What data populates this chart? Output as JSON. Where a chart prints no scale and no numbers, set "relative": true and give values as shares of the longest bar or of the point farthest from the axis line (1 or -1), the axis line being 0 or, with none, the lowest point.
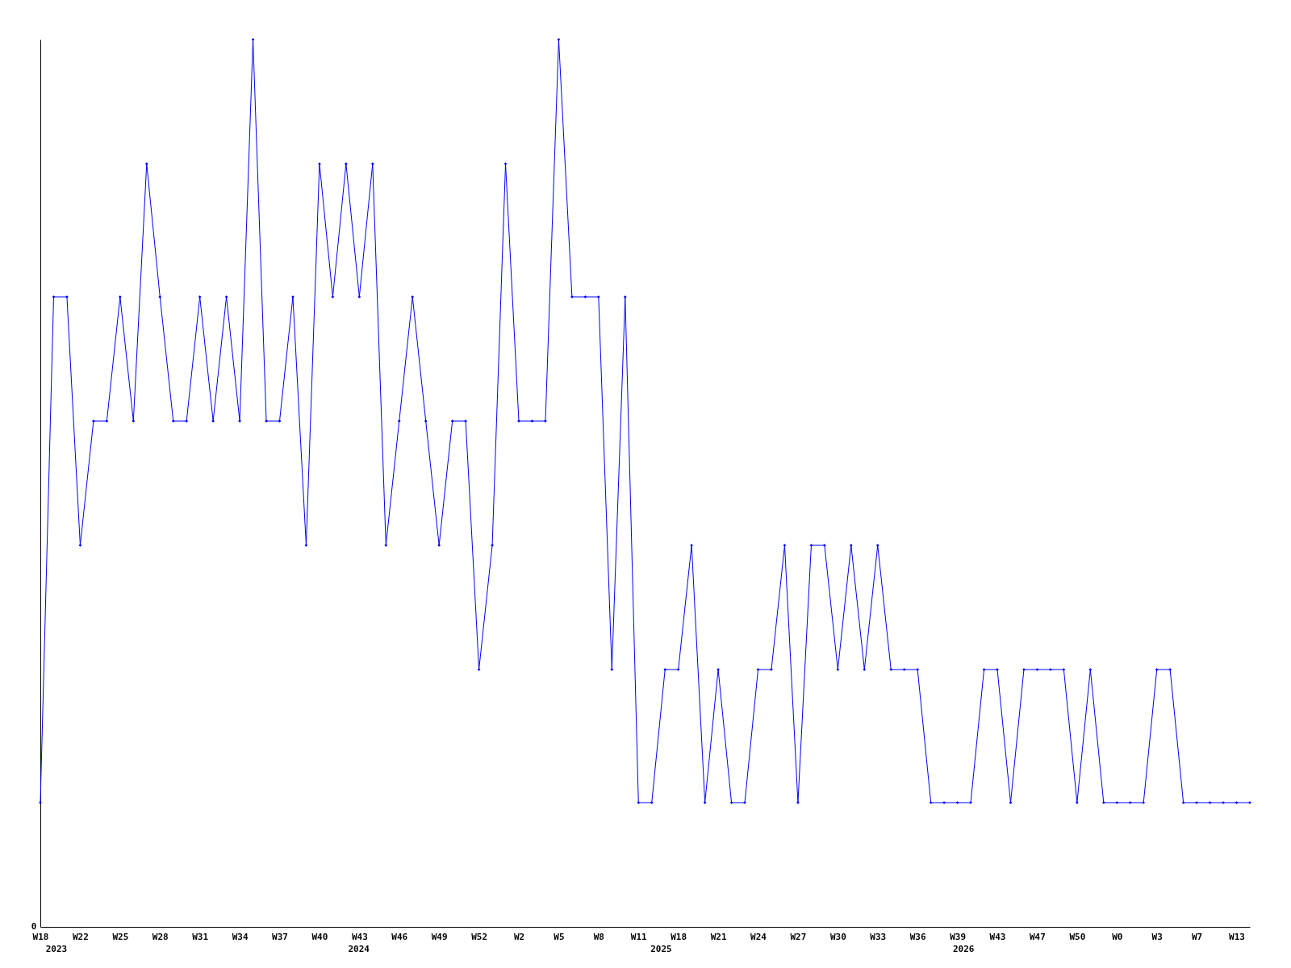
{
  "chart_data": {
    "type": "line",
    "relative": true,
    "marker": "diamond",
    "line_style": "solid",
    "grid": false,
    "categories": [
      "W18",
      null,
      null,
      "W22",
      null,
      null,
      "W25",
      null,
      null,
      "W28",
      null,
      null,
      "W31",
      null,
      null,
      "W34",
      null,
      null,
      "W37",
      null,
      null,
      "W40",
      null,
      null,
      "W43",
      null,
      null,
      "W46",
      null,
      null,
      "W49",
      null,
      null,
      "W52",
      null,
      null,
      "W2",
      null,
      null,
      "W5",
      null,
      null,
      "W8",
      null,
      null,
      "W11",
      null,
      null,
      "W18",
      null,
      null,
      "W21",
      null,
      null,
      "W24",
      null,
      null,
      "W27",
      null,
      null,
      "W30",
      null,
      null,
      "W33",
      null,
      null,
      "W36",
      null,
      null,
      "W39",
      null,
      null,
      "W43",
      null,
      null,
      "W47",
      null,
      null,
      "W50",
      null,
      null,
      "W0",
      null,
      null,
      "W3",
      null,
      null,
      "W7",
      null,
      null,
      "W13",
      null
    ],
    "series": [
      {
        "color": "#0000ff",
        "values": [
          0.14,
          0.71,
          0.71,
          0.43,
          0.57,
          0.57,
          0.71,
          0.57,
          0.86,
          0.71,
          0.57,
          0.57,
          0.71,
          0.57,
          0.71,
          0.57,
          1,
          0.57,
          0.57,
          0.71,
          0.43,
          0.86,
          0.71,
          0.86,
          0.71,
          0.86,
          0.43,
          0.57,
          0.71,
          0.57,
          0.43,
          0.57,
          0.57,
          0.29,
          0.43,
          0.86,
          0.57,
          0.57,
          0.57,
          1,
          0.71,
          0.71,
          0.71,
          0.29,
          0.71,
          0.14,
          0.14,
          0.29,
          0.29,
          0.43,
          0.14,
          0.29,
          0.14,
          0.14,
          0.29,
          0.29,
          0.43,
          0.14,
          0.43,
          0.43,
          0.29,
          0.43,
          0.29,
          0.43,
          0.29,
          0.29,
          0.29,
          0.14,
          0.14,
          0.14,
          0.14,
          0.29,
          0.29,
          0.14,
          0.29,
          0.29,
          0.29,
          0.29,
          0.14,
          0.29,
          0.14,
          0.14,
          0.14,
          0.14,
          0.29,
          0.29,
          0.14,
          0.14,
          0.14,
          0.14,
          0.14,
          0.14
        ]
      }
    ],
    "annotations": [
      "0",
      "2023",
      "2024",
      "2025",
      "2026"
    ]
  }
}
